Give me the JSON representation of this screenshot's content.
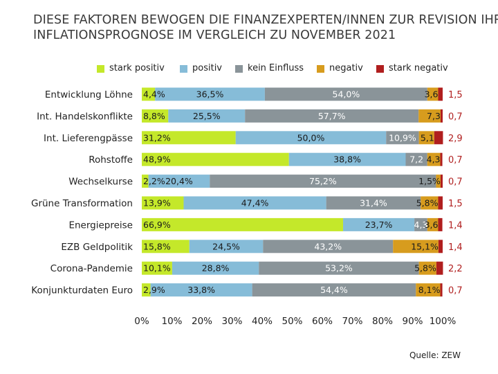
{
  "title_lines": [
    "DIESE FAKTOREN BEWOGEN DIE FINANZEXPERTEN/INNEN ZUR REVISION IHRER",
    "INFLATIONSPROGNOSE IM VERGLEICH ZU NOVEMBER 2021"
  ],
  "source": "Quelle: ZEW",
  "chart_data": {
    "type": "bar",
    "orientation": "horizontal",
    "stacked": true,
    "percent_stacked": true,
    "xlim": [
      0,
      100
    ],
    "x_ticks": [
      "0%",
      "10%",
      "20%",
      "30%",
      "40%",
      "50%",
      "60%",
      "70%",
      "80%",
      "90%",
      "100%"
    ],
    "grid": false,
    "legend_position": "top",
    "categories": [
      "Entwicklung Löhne",
      "Int. Handelskonflikte",
      "Int. Lieferengpässe",
      "Rohstoffe",
      "Wechselkurse",
      "Grüne Transformation",
      "Energiepreise",
      "EZB Geldpolitik",
      "Corona-Pandemie",
      "Konjunkturdaten Euro"
    ],
    "series": [
      {
        "name": "stark positiv",
        "color": "#c4e82a",
        "values": [
          4.4,
          8.8,
          31.2,
          48.9,
          2.2,
          13.9,
          66.9,
          15.8,
          10.1,
          2.9
        ],
        "labels": [
          "4,4%",
          "8,8%",
          "31,2%",
          "48,9%",
          "2,2%",
          "13,9%",
          "66,9%",
          "15,8%",
          "10,1%",
          "2,9%"
        ]
      },
      {
        "name": "positiv",
        "color": "#86bcd8",
        "values": [
          36.5,
          25.5,
          50.0,
          38.8,
          20.4,
          47.4,
          23.7,
          24.5,
          28.8,
          33.8
        ],
        "labels": [
          "36,5%",
          "25,5%",
          "50,0%",
          "38,8%",
          "20,4%",
          "47,4%",
          "23,7%",
          "24,5%",
          "28,8%",
          "33,8%"
        ]
      },
      {
        "name": "kein Einfluss",
        "color": "#8a9499",
        "values": [
          54.0,
          57.7,
          10.9,
          7.2,
          75.2,
          31.4,
          4.3,
          43.2,
          53.2,
          54.4
        ],
        "labels": [
          "54,0%",
          "57,7%",
          "10,9%",
          "7,2",
          "75,2%",
          "31,4%",
          "4,3",
          "43,2%",
          "53,2%",
          "54,4%"
        ]
      },
      {
        "name": "negativ",
        "color": "#d79c1e",
        "values": [
          3.6,
          7.3,
          5.1,
          4.3,
          1.5,
          5.8,
          3.6,
          15.1,
          5.8,
          8.1
        ],
        "labels": [
          "3,6",
          "7,3",
          "5,1",
          "4,3",
          "1,5%",
          "5,8%",
          "3,6",
          "15,1%",
          "5,8%",
          "8,1%"
        ]
      },
      {
        "name": "stark negativ",
        "color": "#b01e1e",
        "values": [
          1.5,
          0.7,
          2.9,
          0.7,
          0.7,
          1.5,
          1.4,
          1.4,
          2.2,
          0.7
        ],
        "labels": [
          "1,5",
          "0,7",
          "2,9",
          "0,7",
          "0,7",
          "1,5",
          "1,4",
          "1,4",
          "2,2",
          "0,7"
        ]
      }
    ]
  }
}
